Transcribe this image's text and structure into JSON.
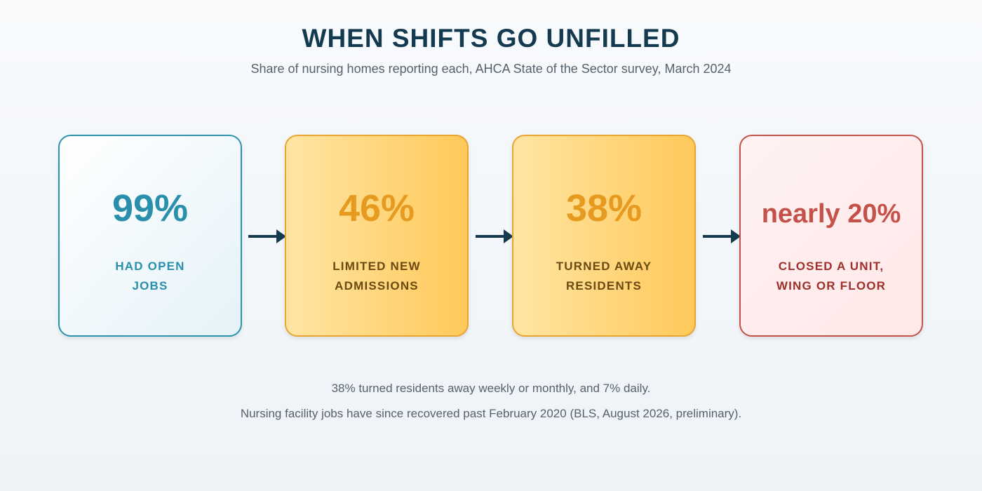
{
  "header": {
    "title": "WHEN SHIFTS GO UNFILLED",
    "subtitle": "Share of nursing homes reporting each, AHCA State of the Sector survey, March 2024"
  },
  "steps": [
    {
      "value": "99%",
      "label_lines": [
        "HAD OPEN",
        "JOBS"
      ]
    },
    {
      "value": "46%",
      "label_lines": [
        "LIMITED NEW",
        "ADMISSIONS"
      ]
    },
    {
      "value": "38%",
      "label_lines": [
        "TURNED AWAY",
        "RESIDENTS"
      ]
    },
    {
      "value": "nearly 20%",
      "label_lines": [
        "CLOSED A UNIT,",
        "WING OR FLOOR"
      ]
    }
  ],
  "notes": [
    "38% turned residents away weekly or monthly, and 7% daily.",
    "Nursing facility jobs have since recovered past February 2020 (BLS, August 2026, preliminary)."
  ],
  "colors": {
    "title": "#143a4f",
    "teal": "#2a8fab",
    "amber": "#e69a1f",
    "red": "#c4514a",
    "arrow": "#143a4f"
  },
  "icons": {
    "connector": "right-arrow-icon"
  }
}
